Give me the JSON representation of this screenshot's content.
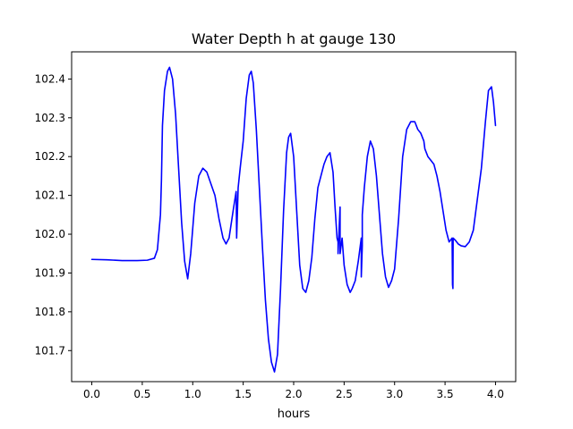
{
  "chart_data": {
    "type": "line",
    "title": "Water Depth h at gauge 130",
    "xlabel": "hours",
    "ylabel": "",
    "xlim": [
      -0.2,
      4.2
    ],
    "ylim": [
      101.62,
      102.47
    ],
    "x_ticks": [
      0.0,
      0.5,
      1.0,
      1.5,
      2.0,
      2.5,
      3.0,
      3.5,
      4.0
    ],
    "x_tick_labels": [
      "0.0",
      "0.5",
      "1.0",
      "1.5",
      "2.0",
      "2.5",
      "3.0",
      "3.5",
      "4.0"
    ],
    "y_ticks": [
      101.7,
      101.8,
      101.9,
      102.0,
      102.1,
      102.2,
      102.3,
      102.4
    ],
    "y_tick_labels": [
      "101.7",
      "101.8",
      "101.9",
      "102.0",
      "102.1",
      "102.2",
      "102.3",
      "102.4"
    ],
    "grid": false,
    "legend": "none",
    "line_color": "#0000ff",
    "series": [
      {
        "x": [
          0.0,
          0.15,
          0.3,
          0.45,
          0.55,
          0.62,
          0.65,
          0.68,
          0.69,
          0.7,
          0.72,
          0.75,
          0.77,
          0.8,
          0.83,
          0.86,
          0.89,
          0.92,
          0.95,
          0.98,
          1.02,
          1.06,
          1.1,
          1.14,
          1.18,
          1.22,
          1.26,
          1.3,
          1.33,
          1.36,
          1.4,
          1.43,
          1.435,
          1.45,
          1.47,
          1.5,
          1.53,
          1.56,
          1.58,
          1.6,
          1.63,
          1.66,
          1.69,
          1.72,
          1.75,
          1.78,
          1.81,
          1.84,
          1.87,
          1.9,
          1.93,
          1.95,
          1.97,
          2.0,
          2.03,
          2.06,
          2.09,
          2.12,
          2.15,
          2.18,
          2.21,
          2.24,
          2.27,
          2.3,
          2.33,
          2.36,
          2.39,
          2.41,
          2.43,
          2.44,
          2.44,
          2.46,
          2.46,
          2.48,
          2.5,
          2.53,
          2.56,
          2.58,
          2.61,
          2.64,
          2.66,
          2.67,
          2.67,
          2.68,
          2.68,
          2.7,
          2.73,
          2.76,
          2.79,
          2.82,
          2.85,
          2.88,
          2.91,
          2.94,
          2.97,
          3.0,
          3.04,
          3.08,
          3.12,
          3.16,
          3.2,
          3.23,
          3.26,
          3.29,
          3.3,
          3.33,
          3.36,
          3.39,
          3.42,
          3.45,
          3.48,
          3.51,
          3.54,
          3.57,
          3.574,
          3.578,
          3.58,
          3.6,
          3.63,
          3.66,
          3.7,
          3.74,
          3.78,
          3.82,
          3.86,
          3.9,
          3.93,
          3.96,
          3.98,
          4.0
        ],
        "y": [
          101.935,
          101.934,
          101.932,
          101.932,
          101.933,
          101.938,
          101.96,
          102.05,
          102.14,
          102.28,
          102.37,
          102.42,
          102.43,
          102.4,
          102.31,
          102.17,
          102.03,
          101.93,
          101.885,
          101.95,
          102.08,
          102.15,
          102.17,
          102.16,
          102.13,
          102.1,
          102.04,
          101.99,
          101.975,
          101.99,
          102.06,
          102.11,
          101.99,
          102.12,
          102.17,
          102.24,
          102.35,
          102.41,
          102.42,
          102.39,
          102.27,
          102.12,
          101.97,
          101.83,
          101.73,
          101.67,
          101.645,
          101.69,
          101.86,
          102.06,
          102.21,
          102.25,
          102.26,
          102.2,
          102.06,
          101.92,
          101.86,
          101.85,
          101.88,
          101.94,
          102.04,
          102.12,
          102.15,
          102.18,
          102.2,
          102.21,
          102.16,
          102.07,
          101.99,
          101.98,
          101.95,
          102.07,
          101.95,
          101.99,
          101.92,
          101.87,
          101.85,
          101.86,
          101.88,
          101.93,
          101.97,
          101.99,
          101.89,
          101.97,
          102.05,
          102.12,
          102.2,
          102.24,
          102.22,
          102.15,
          102.05,
          101.95,
          101.89,
          101.863,
          101.88,
          101.91,
          102.04,
          102.2,
          102.27,
          102.29,
          102.29,
          102.27,
          102.26,
          102.24,
          102.22,
          102.2,
          102.19,
          102.18,
          102.15,
          102.11,
          102.06,
          102.01,
          101.98,
          101.99,
          101.87,
          101.86,
          101.99,
          101.985,
          101.975,
          101.97,
          101.968,
          101.98,
          102.01,
          102.09,
          102.17,
          102.29,
          102.37,
          102.38,
          102.34,
          102.28
        ]
      }
    ]
  }
}
